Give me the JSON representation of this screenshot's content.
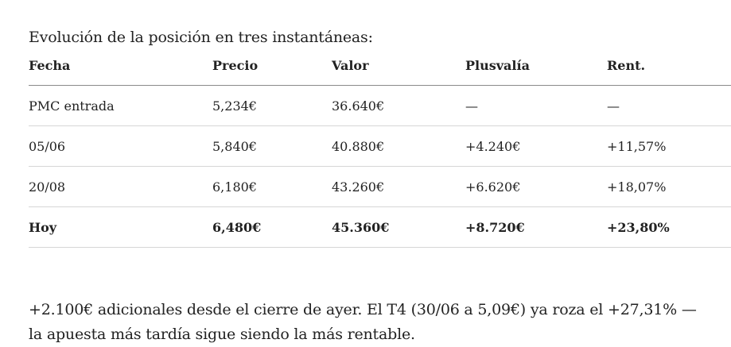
{
  "intro": "Evolución de la posición en tres instantáneas:",
  "table": {
    "headers": [
      "Fecha",
      "Precio",
      "Valor",
      "Plusvalía",
      "Rent."
    ],
    "rows": [
      [
        "PMC entrada",
        "5,234€",
        "36.640€",
        "—",
        "—"
      ],
      [
        "05/06",
        "5,840€",
        "40.880€",
        "+4.240€",
        "+11,57%"
      ],
      [
        "20/08",
        "6,180€",
        "43.260€",
        "+6.620€",
        "+18,07%"
      ],
      [
        "Hoy",
        "6,480€",
        "45.360€",
        "+8.720€",
        "+23,80%"
      ]
    ]
  },
  "conclusion": "+2.100€ adicionales desde el cierre de ayer. El T4 (30/06 a 5,09€) ya roza el +27,31% — la apuesta más tardía sigue siendo la más rentable."
}
